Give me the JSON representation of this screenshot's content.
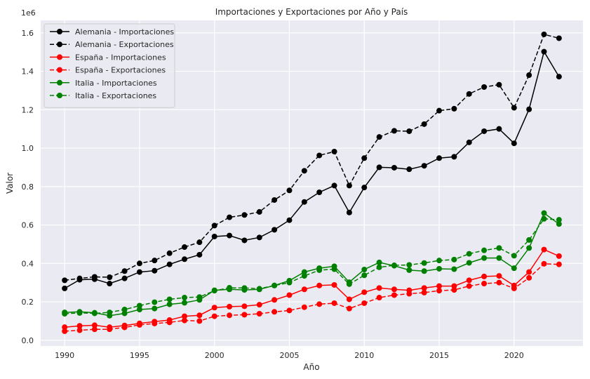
{
  "chart_data": {
    "type": "line",
    "title": "Importaciones y Exportaciones por Año y País",
    "xlabel": "Año",
    "ylabel": "Valor",
    "y_offset_label": "1e6",
    "xlim": [
      1988.4,
      2024.6
    ],
    "ylim": [
      -0.03,
      1.665
    ],
    "x_ticks": [
      1990,
      1995,
      2000,
      2005,
      2010,
      2015,
      2020
    ],
    "x_tick_labels": [
      "1990",
      "1995",
      "2000",
      "2005",
      "2010",
      "2015",
      "2020"
    ],
    "y_ticks": [
      0,
      0.2,
      0.4,
      0.6,
      0.8,
      1.0,
      1.2,
      1.4,
      1.6
    ],
    "y_tick_labels": [
      "0.0",
      "0.2",
      "0.4",
      "0.6",
      "0.8",
      "1.0",
      "1.2",
      "1.4",
      "1.6"
    ],
    "y_scale_note": "values in units of 1e6",
    "grid": true,
    "legend_position": "top-left",
    "background": "#eaeaf2",
    "x": [
      1990,
      1991,
      1992,
      1993,
      1994,
      1995,
      1996,
      1997,
      1998,
      1999,
      2000,
      2001,
      2002,
      2003,
      2004,
      2005,
      2006,
      2007,
      2008,
      2009,
      2010,
      2011,
      2012,
      2013,
      2014,
      2015,
      2016,
      2017,
      2018,
      2019,
      2020,
      2021,
      2022,
      2023
    ],
    "series": [
      {
        "name": "Alemania - Importaciones",
        "color": "#000000",
        "dashed": false,
        "values": [
          0.27,
          0.315,
          0.318,
          0.295,
          0.322,
          0.355,
          0.362,
          0.395,
          0.422,
          0.445,
          0.54,
          0.545,
          0.52,
          0.535,
          0.575,
          0.625,
          0.72,
          0.77,
          0.805,
          0.665,
          0.795,
          0.9,
          0.898,
          0.89,
          0.908,
          0.948,
          0.955,
          1.03,
          1.088,
          1.1,
          1.025,
          1.202,
          1.502,
          1.372
        ]
      },
      {
        "name": "Alemania - Exportaciones",
        "color": "#000000",
        "dashed": true,
        "values": [
          0.312,
          0.322,
          0.33,
          0.328,
          0.36,
          0.4,
          0.415,
          0.453,
          0.485,
          0.51,
          0.597,
          0.64,
          0.652,
          0.668,
          0.73,
          0.78,
          0.882,
          0.962,
          0.982,
          0.805,
          0.948,
          1.058,
          1.09,
          1.088,
          1.125,
          1.195,
          1.205,
          1.282,
          1.318,
          1.33,
          1.21,
          1.38,
          1.592,
          1.572
        ]
      },
      {
        "name": "España - Importaciones",
        "color": "#ff0000",
        "dashed": false,
        "values": [
          0.068,
          0.075,
          0.078,
          0.068,
          0.077,
          0.088,
          0.097,
          0.105,
          0.125,
          0.13,
          0.17,
          0.175,
          0.177,
          0.185,
          0.21,
          0.235,
          0.265,
          0.285,
          0.288,
          0.213,
          0.25,
          0.272,
          0.265,
          0.26,
          0.272,
          0.282,
          0.282,
          0.312,
          0.332,
          0.335,
          0.285,
          0.355,
          0.472,
          0.438
        ]
      },
      {
        "name": "España - Exportaciones",
        "color": "#ff0000",
        "dashed": true,
        "values": [
          0.047,
          0.052,
          0.057,
          0.057,
          0.067,
          0.08,
          0.087,
          0.093,
          0.103,
          0.1,
          0.125,
          0.13,
          0.133,
          0.138,
          0.148,
          0.155,
          0.172,
          0.188,
          0.193,
          0.165,
          0.193,
          0.222,
          0.235,
          0.242,
          0.248,
          0.258,
          0.262,
          0.282,
          0.295,
          0.3,
          0.27,
          0.325,
          0.398,
          0.395
        ]
      },
      {
        "name": "Italia - Importaciones",
        "color": "#008000",
        "dashed": false,
        "values": [
          0.145,
          0.148,
          0.143,
          0.128,
          0.14,
          0.16,
          0.165,
          0.187,
          0.195,
          0.21,
          0.26,
          0.265,
          0.262,
          0.265,
          0.285,
          0.31,
          0.355,
          0.375,
          0.385,
          0.302,
          0.368,
          0.405,
          0.388,
          0.365,
          0.36,
          0.372,
          0.37,
          0.403,
          0.428,
          0.428,
          0.375,
          0.48,
          0.662,
          0.605
        ]
      },
      {
        "name": "Italia - Exportaciones",
        "color": "#008000",
        "dashed": true,
        "values": [
          0.138,
          0.142,
          0.14,
          0.145,
          0.16,
          0.18,
          0.198,
          0.213,
          0.222,
          0.225,
          0.258,
          0.273,
          0.272,
          0.268,
          0.285,
          0.3,
          0.335,
          0.365,
          0.37,
          0.292,
          0.338,
          0.38,
          0.39,
          0.392,
          0.402,
          0.415,
          0.42,
          0.45,
          0.468,
          0.48,
          0.44,
          0.522,
          0.632,
          0.627
        ]
      }
    ]
  }
}
